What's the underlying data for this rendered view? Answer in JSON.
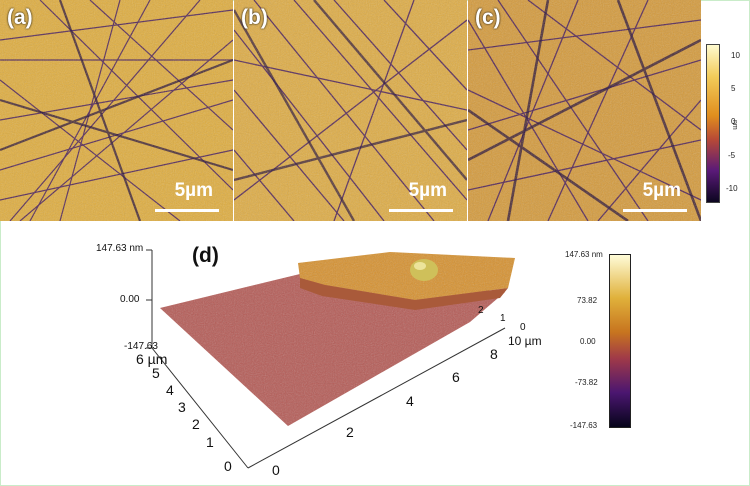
{
  "panels": [
    {
      "label": "(a)",
      "scale": "5µm"
    },
    {
      "label": "(b)",
      "scale": "5µm"
    },
    {
      "label": "(c)",
      "scale": "5µm"
    }
  ],
  "colorbar_top": {
    "ticks": [
      "10",
      "5",
      "0",
      "-5",
      "-10"
    ],
    "unit": "nm"
  },
  "panel_d": {
    "label": "(d)",
    "z_top": "147.63 nm",
    "z_mid": "0.00",
    "z_bot": "-147.63",
    "y_unit": "6 µm",
    "y_ticks": [
      "5",
      "4",
      "3",
      "2",
      "1",
      "0"
    ],
    "x_ticks": [
      "0",
      "2",
      "4",
      "6",
      "8"
    ],
    "x_unit": "10 µm",
    "back_ticks": [
      "2",
      "1",
      "0"
    ]
  },
  "colorbar_d": {
    "ticks": [
      "147.63 nm",
      "73.82",
      "0.00",
      "-73.82",
      "-147.63"
    ]
  }
}
